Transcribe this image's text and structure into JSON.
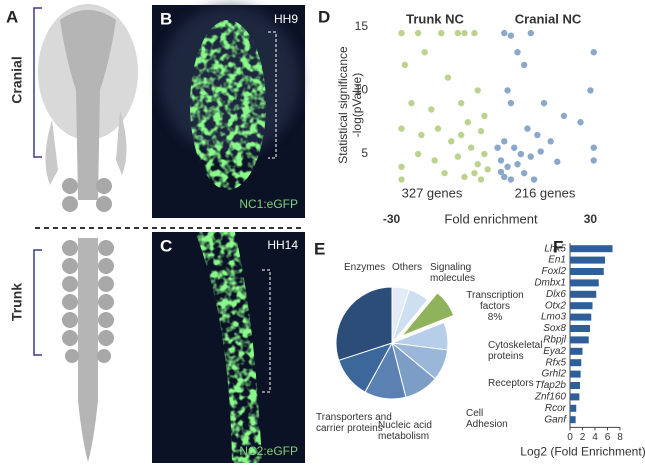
{
  "panels": {
    "a": {
      "letter": "A",
      "cranial": "Cranial",
      "trunk": "Trunk"
    },
    "b": {
      "letter": "B",
      "stage": "HH9",
      "reporter": "NC1:eGFP"
    },
    "c": {
      "letter": "C",
      "stage": "HH14",
      "reporter": "NC2:eGFP"
    },
    "d": {
      "letter": "D"
    },
    "e": {
      "letter": "E"
    },
    "f": {
      "letter": "F"
    }
  },
  "chart_data": [
    {
      "type": "scatter",
      "y_label": [
        "Statistical significance",
        "-log(pValue)"
      ],
      "x_label": "Fold enrichment",
      "xlim": [
        -35,
        35
      ],
      "xticks": [
        -30,
        30
      ],
      "ylim": [
        1,
        16
      ],
      "yticks": [
        5,
        10,
        15
      ],
      "annotations": [
        "327 genes",
        "216 genes"
      ],
      "series": [
        {
          "name": "Trunk NC",
          "color": "#93b446",
          "x": [
            -27,
            -22,
            -15,
            -10,
            -8,
            -5,
            -26,
            -20,
            -13,
            -24,
            -18,
            -9,
            -4,
            -27,
            -21,
            -16,
            -12,
            -7,
            -3,
            -27,
            -22,
            -17,
            -14,
            -10,
            -8,
            -6,
            -4,
            -3,
            -2,
            -1,
            -27,
            -5,
            -9,
            -2
          ],
          "values": [
            14.5,
            14.5,
            14.5,
            14.5,
            14.5,
            14.5,
            12,
            13,
            11,
            9,
            8.5,
            9,
            10,
            7,
            6.5,
            7,
            6,
            7.5,
            6.8,
            4,
            5,
            4.5,
            3.5,
            4.8,
            3.2,
            5.5,
            4.2,
            3,
            5,
            3.8,
            3,
            3.5,
            6.5,
            8
          ]
        },
        {
          "name": "Cranial NC",
          "color": "#3d6ea6",
          "x": [
            4,
            6,
            8,
            12,
            31,
            10,
            5,
            6,
            30,
            16,
            22,
            27,
            11,
            14,
            18,
            4,
            7,
            9,
            3,
            5,
            8,
            12,
            15,
            20,
            4,
            6,
            10,
            13,
            31,
            31,
            2,
            3
          ],
          "values": [
            14.5,
            14.3,
            13,
            14.5,
            13,
            12,
            10,
            9,
            10,
            9,
            8,
            7.5,
            7,
            6.5,
            6,
            6,
            5.5,
            5,
            4.5,
            4,
            4.2,
            4.8,
            5.2,
            4.4,
            3.2,
            3,
            3.5,
            3,
            5.5,
            4.5,
            5.5,
            3.6
          ]
        }
      ]
    },
    {
      "type": "pie",
      "categories": [
        "Others",
        "Signaling molecules",
        "Transcription factors",
        "Cytoskeletal proteins",
        "Receptors",
        "Cell Adhesion",
        "Nucleic acid metabolism",
        "Transporters and carrier proteins",
        "Enzymes"
      ],
      "values": [
        5,
        6,
        8,
        8,
        9,
        10,
        12,
        12,
        30
      ],
      "value_labels": [
        null,
        null,
        "8%",
        null,
        null,
        null,
        null,
        null,
        null
      ],
      "explode": [
        false,
        false,
        true,
        false,
        false,
        false,
        false,
        false,
        false
      ],
      "colors": [
        "#e3ecf6",
        "#cddff0",
        "#8fb35a",
        "#b7cee8",
        "#9ab7da",
        "#7c9dc6",
        "#5a81b1",
        "#3b679b",
        "#2b4d78"
      ]
    },
    {
      "type": "bar",
      "orientation": "horizontal",
      "x_label": "Log2 (Fold Enrichment)",
      "color": "#2e5f98",
      "categories": [
        "Lhx5",
        "En1",
        "Foxl2",
        "Dmbx1",
        "Dlx6",
        "Otx2",
        "Lmo3",
        "Sox8",
        "Rbpjl",
        "Eya2",
        "Rfx5",
        "Grhl2",
        "Tfap2b",
        "Znf160",
        "Rcor",
        "Ganf"
      ],
      "values": [
        6.8,
        5.6,
        5.4,
        4.6,
        4.2,
        3.6,
        3.4,
        3.2,
        3.0,
        2.0,
        1.8,
        1.7,
        1.6,
        1.5,
        1.0,
        0.9
      ],
      "xlim": [
        0,
        8
      ],
      "xticks": [
        0,
        2,
        4,
        6,
        8
      ]
    }
  ]
}
